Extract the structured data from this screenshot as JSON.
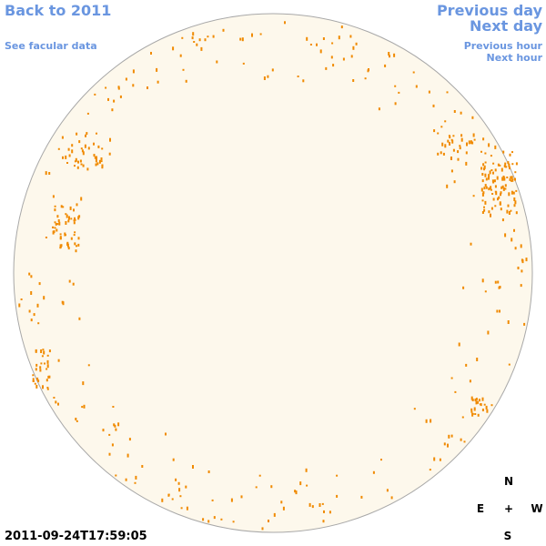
{
  "nav": {
    "back": "Back to 2011",
    "facular": "See facular data",
    "previous_day": "Previous day",
    "next_day": "Next day",
    "previous_hour": "Previous hour",
    "next_hour": "Next hour"
  },
  "timestamp": "2011-09-24T17:59:05",
  "compass": {
    "north": "N",
    "east": "E",
    "center": "+",
    "west": "W",
    "south": "S"
  }
}
